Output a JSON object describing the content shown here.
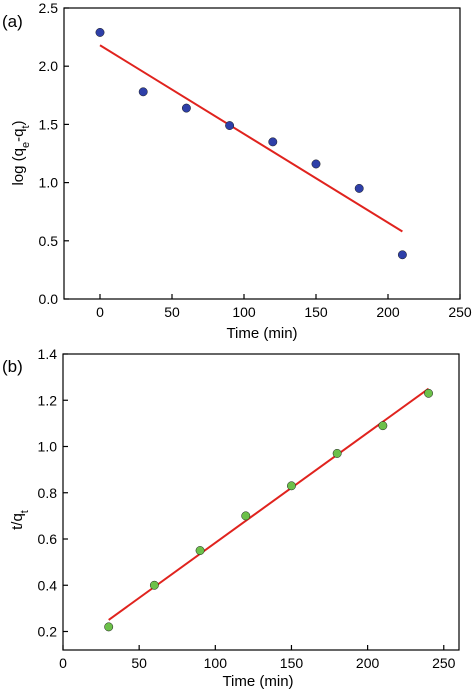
{
  "chart_data": [
    {
      "panel_label": "(a)",
      "type": "scatter",
      "xlabel": "Time (min)",
      "ylabel": "log (q",
      "ylabel_sub1": "e",
      "ylabel_mid": "-q",
      "ylabel_sub2": "t",
      "ylabel_end": ")",
      "xlim": [
        -25,
        250
      ],
      "ylim": [
        0.0,
        2.5
      ],
      "xticks": [
        0,
        50,
        100,
        150,
        200,
        250
      ],
      "yticks": [
        0.0,
        0.5,
        1.0,
        1.5,
        2.0,
        2.5
      ],
      "xtick_labels": [
        "0",
        "50",
        "100",
        "150",
        "200",
        "250"
      ],
      "ytick_labels": [
        "0.0",
        "0.5",
        "1.0",
        "1.5",
        "2.0",
        "2.5"
      ],
      "marker_color": "#2e3fa8",
      "line_color": "#e0231e",
      "series": [
        {
          "x": [
            0,
            30,
            60,
            90,
            120,
            150,
            180,
            210
          ],
          "y": [
            2.29,
            1.78,
            1.64,
            1.49,
            1.35,
            1.16,
            0.95,
            0.38
          ]
        }
      ],
      "fit_line": {
        "x": [
          0,
          210
        ],
        "y": [
          2.18,
          0.58
        ]
      },
      "grid": false
    },
    {
      "panel_label": "(b)",
      "type": "scatter",
      "xlabel": "Time (min)",
      "ylabel": "t/q",
      "ylabel_sub": "t",
      "xlim": [
        0,
        260
      ],
      "ylim": [
        0.12,
        1.4
      ],
      "xticks": [
        0,
        50,
        100,
        150,
        200,
        250
      ],
      "yticks": [
        0.2,
        0.4,
        0.6,
        0.8,
        1.0,
        1.2,
        1.4
      ],
      "xtick_labels": [
        "0",
        "50",
        "100",
        "150",
        "200",
        "250"
      ],
      "ytick_labels": [
        "0.2",
        "0.4",
        "0.6",
        "0.8",
        "1.0",
        "1.2",
        "1.4"
      ],
      "marker_color": "#6cc04a",
      "line_color": "#e0231e",
      "series": [
        {
          "x": [
            30,
            60,
            90,
            120,
            150,
            180,
            210,
            240
          ],
          "y": [
            0.22,
            0.4,
            0.55,
            0.7,
            0.83,
            0.97,
            1.09,
            1.23
          ]
        }
      ],
      "fit_line": {
        "x": [
          30,
          240
        ],
        "y": [
          0.25,
          1.25
        ]
      },
      "grid": false
    }
  ]
}
